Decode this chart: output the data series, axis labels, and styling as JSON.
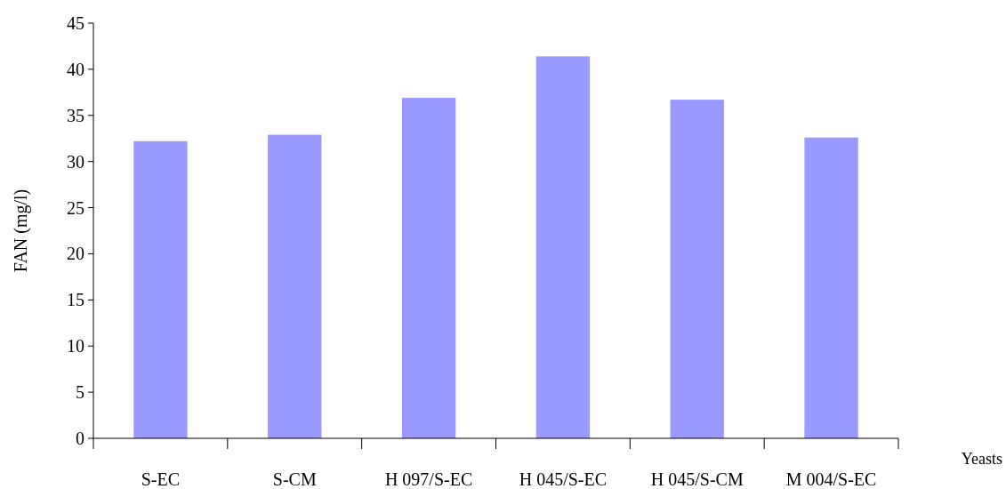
{
  "chart_data": {
    "type": "bar",
    "xlabel": "Yeasts",
    "ylabel": "FAN (mg/l)",
    "categories": [
      "S-EC",
      "S-CM",
      "H 097/S-EC",
      "H 045/S-EC",
      "H 045/S-CM",
      "M 004/S-EC"
    ],
    "values": [
      32.2,
      32.9,
      36.9,
      41.4,
      36.7,
      32.6
    ],
    "color": "#9999ff",
    "ylim": [
      0,
      45
    ],
    "yticks": [
      0,
      5,
      10,
      15,
      20,
      25,
      30,
      35,
      40,
      45
    ]
  }
}
